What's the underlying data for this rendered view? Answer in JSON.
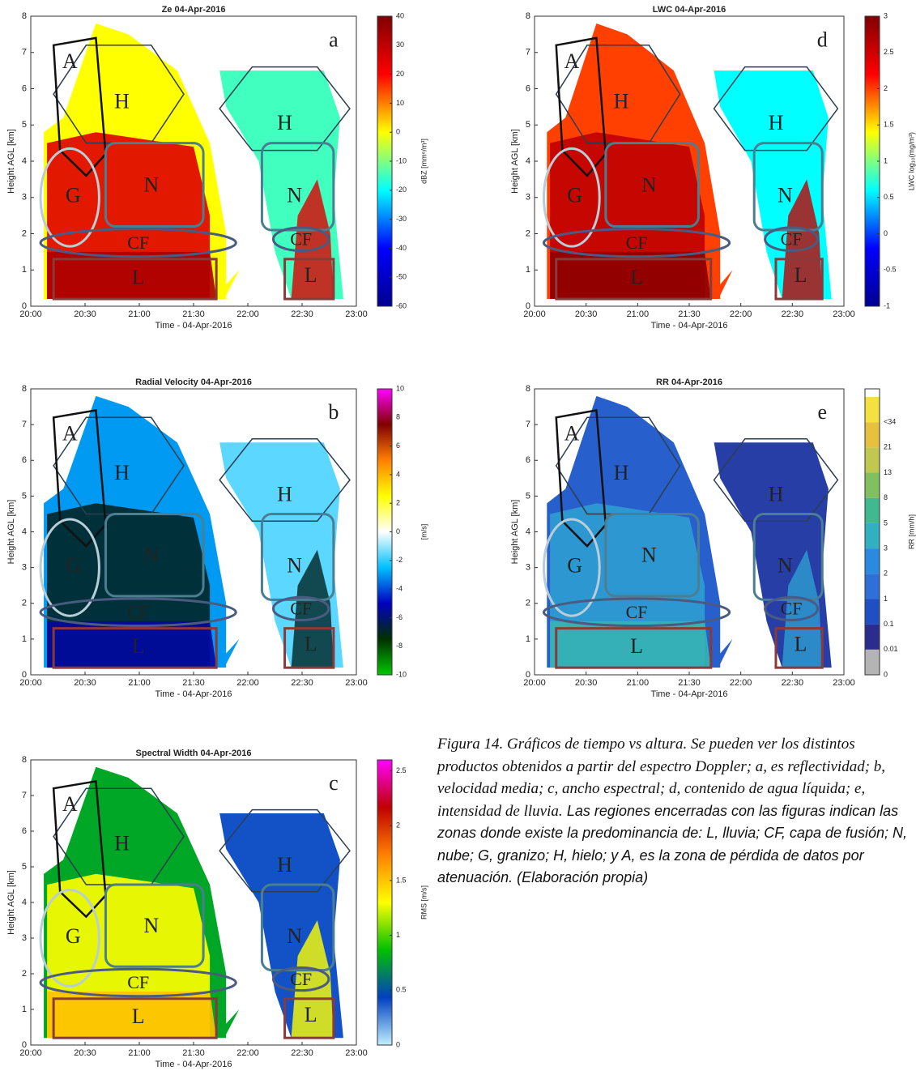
{
  "chart_data": [
    {
      "type": "heatmap",
      "title": "Ze 04-Apr-2016",
      "panel": "a",
      "xlabel": "Time - 04-Apr-2016",
      "ylabel": "Height AGL [km]",
      "xticks": [
        "20:00",
        "20:30",
        "21:00",
        "21:30",
        "22:00",
        "22:30",
        "23:00"
      ],
      "ylim": [
        0,
        8
      ],
      "yticks": [
        0,
        1,
        2,
        3,
        4,
        5,
        6,
        7,
        8
      ],
      "clabel": "dBZ [mm⁶/m³]",
      "clim": [
        -60,
        40
      ],
      "cticks": [
        -60,
        -50,
        -40,
        -30,
        -20,
        -10,
        0,
        10,
        20,
        30,
        40
      ],
      "colors": [
        "#00008f",
        "#0000ff",
        "#00ffff",
        "#ffff00",
        "#ff0000",
        "#800000"
      ],
      "regions": [
        "A",
        "H",
        "H",
        "G",
        "N",
        "N",
        "CF",
        "CF",
        "L",
        "L"
      ]
    },
    {
      "type": "heatmap",
      "title": "Radial Velocity 04-Apr-2016",
      "panel": "b",
      "xlabel": "Time - 04-Apr-2016",
      "ylabel": "Height AGL [km]",
      "xticks": [
        "20:00",
        "20:30",
        "21:00",
        "21:30",
        "22:00",
        "22:30",
        "23:00"
      ],
      "ylim": [
        0,
        8
      ],
      "yticks": [
        0,
        1,
        2,
        3,
        4,
        5,
        6,
        7,
        8
      ],
      "clabel": "[m/s]",
      "clim": [
        -10,
        10
      ],
      "cticks": [
        -10,
        -8,
        -6,
        -4,
        -2,
        0,
        2,
        4,
        6,
        8,
        10
      ],
      "colors": [
        "#00c800",
        "#003000",
        "#0000c0",
        "#00c0ff",
        "#ffffff",
        "#ffff00",
        "#ff8000",
        "#800000",
        "#ff00ff"
      ],
      "regions": [
        "A",
        "H",
        "H",
        "G",
        "N",
        "N",
        "CF",
        "CF",
        "L",
        "L"
      ]
    },
    {
      "type": "heatmap",
      "title": "Spectral Width 04-Apr-2016",
      "panel": "c",
      "xlabel": "Time - 04-Apr-2016",
      "ylabel": "Height AGL [km]",
      "xticks": [
        "20:00",
        "20:30",
        "21:00",
        "21:30",
        "22:00",
        "22:30",
        "23:00"
      ],
      "ylim": [
        0,
        8
      ],
      "yticks": [
        0,
        1,
        2,
        3,
        4,
        5,
        6,
        7,
        8
      ],
      "clabel": "RMS [m/s]",
      "clim": [
        0,
        2.6
      ],
      "cticks": [
        0,
        0.5,
        1,
        1.5,
        2,
        2.5
      ],
      "colors": [
        "#c0f0ff",
        "#0040c0",
        "#00c000",
        "#ffff00",
        "#ff8000",
        "#c00000",
        "#ff00ff"
      ],
      "regions": [
        "A",
        "H",
        "H",
        "G",
        "N",
        "N",
        "CF",
        "CF",
        "L",
        "L"
      ]
    },
    {
      "type": "heatmap",
      "title": "LWC 04-Apr-2016",
      "panel": "d",
      "xlabel": "Time - 04-Apr-2016",
      "ylabel": "Height AGL [km]",
      "xticks": [
        "20:00",
        "20:30",
        "21:00",
        "21:30",
        "22:00",
        "22:30",
        "23:00"
      ],
      "ylim": [
        0,
        8
      ],
      "yticks": [
        0,
        1,
        2,
        3,
        4,
        5,
        6,
        7,
        8
      ],
      "clabel": "LWC log₁₀(mg/m³)",
      "clim": [
        -1,
        3
      ],
      "cticks": [
        -1,
        -0.5,
        0,
        0.5,
        1,
        1.5,
        2,
        2.5,
        3
      ],
      "colors": [
        "#00008f",
        "#0000ff",
        "#00ffff",
        "#ffff00",
        "#ff0000",
        "#800000"
      ],
      "regions": [
        "A",
        "H",
        "H",
        "G",
        "N",
        "N",
        "CF",
        "CF",
        "L",
        "L"
      ]
    },
    {
      "type": "heatmap",
      "title": "RR 04-Apr-2016",
      "panel": "e",
      "xlabel": "Time - 04-Apr-2016",
      "ylabel": "Height AGL [km]",
      "xticks": [
        "20:00",
        "20:30",
        "21:00",
        "21:30",
        "22:00",
        "22:30",
        "23:00"
      ],
      "ylim": [
        0,
        8
      ],
      "yticks": [
        0,
        1,
        2,
        3,
        4,
        5,
        6,
        7,
        8
      ],
      "clabel": "RR [mm/h]",
      "clevels": [
        "0",
        "0.01",
        "0.1",
        "1",
        "2",
        "3",
        "5",
        "8",
        "13",
        "21",
        "<34"
      ],
      "colors": [
        "#b4b4b4",
        "#2c2c8c",
        "#1f4fc0",
        "#2f6fd8",
        "#2a8ae0",
        "#30b0c0",
        "#40b890",
        "#80c060",
        "#c0c850",
        "#e8c040",
        "#f4e040"
      ],
      "regions": [
        "A",
        "H",
        "H",
        "G",
        "N",
        "N",
        "CF",
        "CF",
        "L",
        "L"
      ]
    }
  ],
  "caption": {
    "part1": "Figura 14. Gráficos de tiempo vs altura. Se pueden ver los distintos productos obtenidos a partir del espectro Doppler; a, es reflectividad; b, velocidad media; c, ancho espectral; d, contenido de agua líquida; e, intensidad de lluvia.",
    "part2": "Las regiones encerradas con las figuras indican las zonas donde existe la predominancia de: L, lluvia; CF, capa de fusión; N, nube; G, granizo; H, hielo; y A, es la zona de pérdida de datos por atenuación. (Elaboración propia)"
  }
}
